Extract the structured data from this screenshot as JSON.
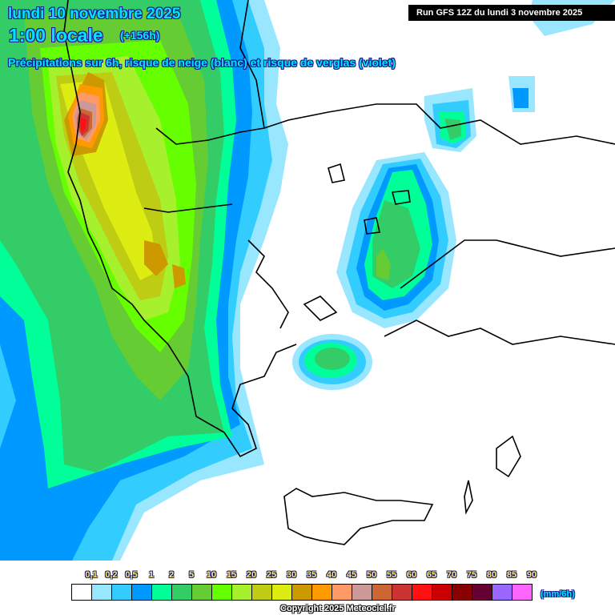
{
  "header": {
    "date": "lundi 10 novembre 2025",
    "time": "1:00 locale",
    "lead": "(+156h)",
    "description": "Précipitations sur 6h, risque de neige (blanc) et risque de verglas (violet)",
    "run": "Run GFS 12Z du lundi 3 novembre 2025"
  },
  "legend": {
    "unit": "(mm/6h)",
    "labels": [
      "0,1",
      "0,2",
      "0,5",
      "1",
      "2",
      "5",
      "10",
      "15",
      "20",
      "25",
      "30",
      "35",
      "40",
      "45",
      "50",
      "55",
      "60",
      "65",
      "70",
      "75",
      "80",
      "85",
      "90"
    ],
    "colors": [
      "#ffffff",
      "#99e6ff",
      "#33ccff",
      "#0099ff",
      "#00ff99",
      "#33cc66",
      "#66cc33",
      "#66ff00",
      "#a6f02e",
      "#bfcc14",
      "#dded12",
      "#cc9900",
      "#ff9900",
      "#ff9966",
      "#cc9999",
      "#cc6633",
      "#cc3333",
      "#ff1111",
      "#cc0000",
      "#880000",
      "#660033",
      "#9966ff",
      "#ff66ff"
    ]
  },
  "footer": {
    "copyright": "Copyright 2025 Meteociel.fr"
  },
  "chart_data": {
    "type": "heatmap",
    "title": "Précipitations sur 6h, risque de neige (blanc) et risque de verglas (violet)",
    "subtitle": "lundi 10 novembre 2025 1:00 locale (+156h) — Run GFS 12Z du lundi 3 novembre 2025",
    "region": "Balkans / Greece / Aegean",
    "unit": "mm/6h",
    "scale_thresholds": [
      0.1,
      0.2,
      0.5,
      1,
      2,
      5,
      10,
      15,
      20,
      25,
      30,
      35,
      40,
      45,
      50,
      55,
      60,
      65,
      70,
      75,
      80,
      85,
      90
    ],
    "features": [
      {
        "area": "Albania / Montenegro coast (northwest)",
        "max_mm": 55,
        "note": "peak red core near x~100,y~150"
      },
      {
        "area": "North Macedonia / western Greece interior",
        "max_mm": 30
      },
      {
        "area": "Ionian Sea / western Greece",
        "range_mm": [
          2,
          15
        ]
      },
      {
        "area": "Northern Aegean / Thasos–Lemnos area",
        "range_mm": [
          1,
          10
        ]
      },
      {
        "area": "Northwest Turkey / Thrace",
        "range_mm": [
          0.5,
          5
        ]
      },
      {
        "area": "Andros / Cyclades north",
        "range_mm": [
          1,
          5
        ]
      },
      {
        "area": "Crete / SE Aegean / Rhodes",
        "range_mm": [
          0,
          0.1
        ]
      }
    ],
    "legend_position": "bottom"
  }
}
